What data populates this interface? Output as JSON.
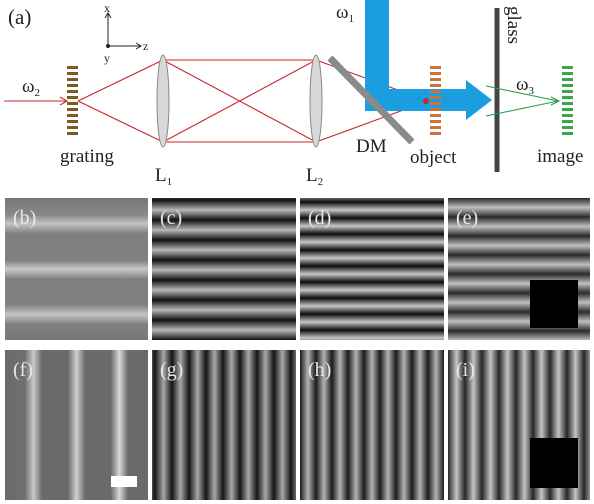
{
  "panel_a": {
    "label": "(a)",
    "axis_x": "x",
    "axis_y": "y",
    "axis_z": "z",
    "omega_1": {
      "base": "ω",
      "sub": "1"
    },
    "omega_2": {
      "base": "ω",
      "sub": "2"
    },
    "omega_3": {
      "base": "ω",
      "sub": "3"
    },
    "grating": "grating",
    "lens_1": {
      "base": "L",
      "sub": "1"
    },
    "lens_2": {
      "base": "L",
      "sub": "2"
    },
    "dm": "DM",
    "object": "object",
    "glass": "glass",
    "image": "image"
  },
  "panels": [
    {
      "label": "(b)"
    },
    {
      "label": "(c)"
    },
    {
      "label": "(d)"
    },
    {
      "label": "(e)"
    },
    {
      "label": "(f)"
    },
    {
      "label": "(g)"
    },
    {
      "label": "(h)"
    },
    {
      "label": "(i)"
    }
  ]
}
